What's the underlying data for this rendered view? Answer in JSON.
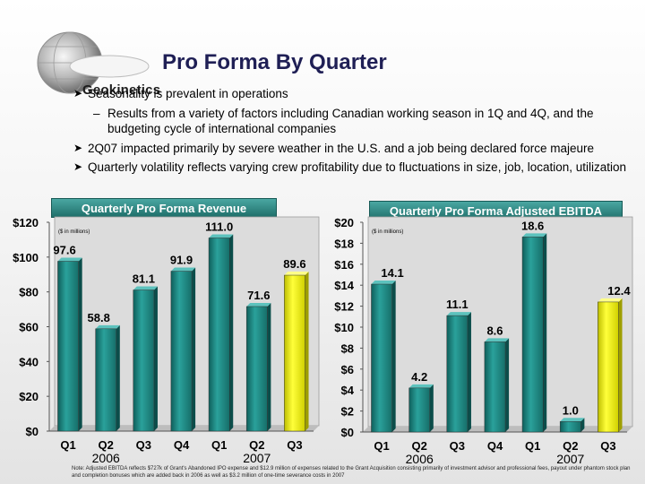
{
  "logo": {
    "text": "Geokinetics"
  },
  "title": "Pro Forma By Quarter",
  "bullets": [
    "Seasonality is prevalent in operations",
    "Results from a variety of factors including Canadian working season in 1Q and 4Q, and the budgeting cycle of international companies",
    "2Q07 impacted primarily by severe weather in the U.S. and a job being declared force majeure",
    "Quarterly volatility reflects varying crew profitability due to fluctuations in size, job, location, utilization"
  ],
  "colors": {
    "bar": "#1f8c87",
    "highlight": "#f2f20a",
    "title_bg": "#2a8a85"
  },
  "chart_data": [
    {
      "type": "bar",
      "title": "Quarterly Pro Forma Revenue",
      "unit_note": "($ in millions)",
      "categories": [
        "Q1",
        "Q2",
        "Q3",
        "Q4",
        "Q1",
        "Q2",
        "Q3"
      ],
      "years": [
        "2006",
        "2007"
      ],
      "values": [
        97.6,
        58.8,
        81.1,
        91.9,
        111.0,
        71.6,
        89.6
      ],
      "value_labels": [
        "97.6",
        "58.8",
        "81.1",
        "91.9",
        "111.0",
        "71.6",
        "89.6"
      ],
      "highlight_index": 6,
      "ylim": [
        0,
        120
      ],
      "yticks": [
        0,
        20,
        40,
        60,
        80,
        100,
        120
      ],
      "ytick_labels": [
        "$0",
        "$20",
        "$40",
        "$60",
        "$80",
        "$100",
        "$120"
      ]
    },
    {
      "type": "bar",
      "title": "Quarterly Pro Forma Adjusted EBITDA",
      "unit_note": "($ in millions)",
      "categories": [
        "Q1",
        "Q2",
        "Q3",
        "Q4",
        "Q1",
        "Q2",
        "Q3"
      ],
      "years": [
        "2006",
        "2007"
      ],
      "values": [
        14.1,
        4.2,
        11.1,
        8.6,
        18.6,
        1.0,
        12.4
      ],
      "value_labels": [
        "14.1",
        "4.2",
        "11.1",
        "8.6",
        "18.6",
        "1.0",
        "12.4"
      ],
      "highlight_index": 6,
      "ylim": [
        0,
        20
      ],
      "yticks": [
        0,
        2,
        4,
        6,
        8,
        10,
        12,
        14,
        16,
        18,
        20
      ],
      "ytick_labels": [
        "$0",
        "$2",
        "$4",
        "$6",
        "$8",
        "$10",
        "$12",
        "$14",
        "$16",
        "$18",
        "$20"
      ]
    }
  ],
  "footnote": "Note: Adjusted EBITDA reflects $727k of Grant's Abandoned IPO expense and $12.9 million of expenses related to the Grant Acquisition consisting primarily of investment advisor and professional fees, payout under phantom stock plan and completion bonuses which are added back in 2006 as well as $3.2 million of one-time severance costs in 2007"
}
